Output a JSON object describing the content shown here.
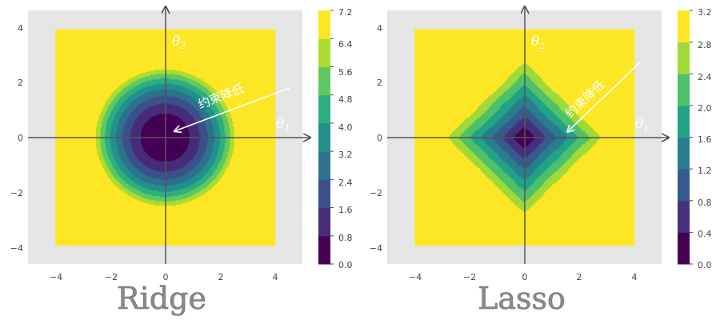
{
  "chart_data": [
    {
      "type": "heatmap",
      "subtype": "filled-contour",
      "title": "Ridge",
      "function": "theta1^2 + theta2^2",
      "xlim": [
        -5,
        5
      ],
      "ylim": [
        -4.7,
        4.7
      ],
      "data_extent": [
        -4,
        4
      ],
      "x_ticks": [
        -4,
        -2,
        0,
        2,
        4
      ],
      "y_ticks": [
        -4,
        -2,
        0,
        2,
        4
      ],
      "x_tick_labels": [
        "−4",
        "−2",
        "0",
        "2",
        "4"
      ],
      "y_tick_labels": [
        "−4",
        "−2",
        "0",
        "2",
        "4"
      ],
      "levels": [
        0.0,
        0.8,
        1.6,
        2.4,
        3.2,
        4.0,
        4.8,
        5.6,
        6.4,
        7.2
      ],
      "colorbar_tick_labels": [
        "0.0",
        "0.8",
        "1.6",
        "2.4",
        "3.2",
        "4.0",
        "4.8",
        "5.6",
        "6.4",
        "7.2"
      ],
      "colormap": "viridis",
      "axis_labels": {
        "theta1": "θ",
        "theta1_sub": "1",
        "theta2": "θ",
        "theta2_sub": "2"
      },
      "annotation": {
        "text": "约束降低",
        "arrow_from": [
          4.5,
          1.8
        ],
        "arrow_to": [
          0.3,
          0.25
        ]
      },
      "grid": false
    },
    {
      "type": "heatmap",
      "subtype": "filled-contour",
      "title": "Lasso",
      "function": "|theta1| + |theta2|",
      "xlim": [
        -5,
        5
      ],
      "ylim": [
        -4.7,
        4.7
      ],
      "data_extent": [
        -4,
        4
      ],
      "x_ticks": [
        -4,
        -2,
        0,
        2,
        4
      ],
      "y_ticks": [
        -4,
        -2,
        0,
        2,
        4
      ],
      "x_tick_labels": [
        "−4",
        "−2",
        "0",
        "2",
        "4"
      ],
      "y_tick_labels": [
        "−4",
        "−2",
        "0",
        "2",
        "4"
      ],
      "levels": [
        0.0,
        0.4,
        0.8,
        1.2,
        1.6,
        2.0,
        2.4,
        2.8,
        3.2
      ],
      "colorbar_tick_labels": [
        "0.0",
        "0.4",
        "0.8",
        "1.2",
        "1.6",
        "2.0",
        "2.4",
        "2.8",
        "3.2"
      ],
      "colormap": "viridis",
      "axis_labels": {
        "theta1": "θ",
        "theta1_sub": "1",
        "theta2": "θ",
        "theta2_sub": "2"
      },
      "annotation": {
        "text": "约束降低",
        "arrow_from": [
          4.3,
          2.8
        ],
        "arrow_to": [
          1.5,
          0.2
        ]
      },
      "grid": false
    }
  ],
  "colors": {
    "axes_background": "#e5e5e5",
    "axis_arrow": "#555555",
    "annotation": "#ffffff",
    "title_text": "#8a8a8a",
    "viridis": [
      "#440154",
      "#482878",
      "#3e4989",
      "#31688e",
      "#26828e",
      "#1f9e89",
      "#35b779",
      "#6ece58",
      "#b5de2b",
      "#fde725"
    ]
  }
}
